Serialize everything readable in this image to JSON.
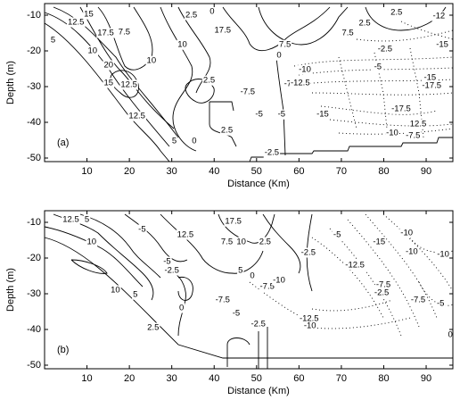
{
  "chart_data": [
    {
      "type": "contour",
      "panel_label": "(a)",
      "xlabel": "Distance (Km)",
      "ylabel": "Depth (m)",
      "xlim": [
        0,
        96.3
      ],
      "ylim": [
        -51,
        -6.75
      ],
      "xticks": [
        10,
        20,
        30,
        40,
        50,
        60,
        70,
        80,
        90
      ],
      "yticks": [
        -10,
        -20,
        -30,
        -40,
        -50
      ],
      "labels": [
        {
          "x": 7.4,
          "y": -12,
          "value": 12.5
        },
        {
          "x": 10.4,
          "y": -9.8,
          "value": 15
        },
        {
          "x": 14.4,
          "y": -15,
          "value": 17.5
        },
        {
          "x": 18.8,
          "y": -14.8,
          "value": 7.5
        },
        {
          "x": 32.5,
          "y": -18.3,
          "value": 10
        },
        {
          "x": 42,
          "y": -14.3,
          "value": 17.5
        },
        {
          "x": 34.6,
          "y": -10,
          "value": 2.5
        },
        {
          "x": 39.5,
          "y": -9,
          "value": 0
        },
        {
          "x": 71.5,
          "y": -15,
          "value": 7.5
        },
        {
          "x": 75.5,
          "y": -12.3,
          "value": 2.5
        },
        {
          "x": 83,
          "y": -9.3,
          "value": 2.5
        },
        {
          "x": 93,
          "y": -10.3,
          "value": -12
        },
        {
          "x": 93.8,
          "y": -18.3,
          "value": -15
        },
        {
          "x": 80.3,
          "y": -19.5,
          "value": -2.5
        },
        {
          "x": 78.6,
          "y": -24.5,
          "value": -5
        },
        {
          "x": 90.9,
          "y": -27.5,
          "value": -15
        },
        {
          "x": 91.3,
          "y": -29.8,
          "value": -17.5
        },
        {
          "x": 58.2,
          "y": -29.3,
          "value": -7.5
        },
        {
          "x": 60.3,
          "y": -29,
          "value": -12.5
        },
        {
          "x": 61.4,
          "y": -25.3,
          "value": -10
        },
        {
          "x": 55.3,
          "y": -21.3,
          "value": 0
        },
        {
          "x": 56.7,
          "y": -18.3,
          "value": 7.5
        },
        {
          "x": 47.9,
          "y": -31.5,
          "value": -7.5
        },
        {
          "x": 50.6,
          "y": -37.8,
          "value": -5
        },
        {
          "x": 55.9,
          "y": -37.8,
          "value": -5
        },
        {
          "x": 65.6,
          "y": -37.8,
          "value": -15
        },
        {
          "x": 84.1,
          "y": -36.3,
          "value": -17.5
        },
        {
          "x": 88.1,
          "y": -40.5,
          "value": 12.5
        },
        {
          "x": 82,
          "y": -43,
          "value": -10
        },
        {
          "x": 86.9,
          "y": -43.8,
          "value": -7.5
        },
        {
          "x": 53.6,
          "y": -48.5,
          "value": -2.5
        },
        {
          "x": 43,
          "y": -42.3,
          "value": 2.5
        },
        {
          "x": 35.3,
          "y": -45.3,
          "value": 0
        },
        {
          "x": 30.6,
          "y": -45.3,
          "value": 5
        },
        {
          "x": 21.8,
          "y": -38.3,
          "value": 12.5
        },
        {
          "x": 19.9,
          "y": -29.5,
          "value": 12.5
        },
        {
          "x": 15.1,
          "y": -24,
          "value": 20
        },
        {
          "x": 25.2,
          "y": -22.8,
          "value": 10
        },
        {
          "x": 15.1,
          "y": -29,
          "value": 15
        },
        {
          "x": 11.3,
          "y": -20,
          "value": 10
        },
        {
          "x": 2,
          "y": -17,
          "value": 5
        },
        {
          "x": 38.8,
          "y": -28.3,
          "value": 2.5
        }
      ]
    },
    {
      "type": "contour",
      "panel_label": "(b)",
      "xlabel": "Distance (Km)",
      "ylabel": "Depth (m)",
      "xlim": [
        0,
        96.3
      ],
      "ylim": [
        -51,
        -6.75
      ],
      "xticks": [
        10,
        20,
        30,
        40,
        50,
        60,
        70,
        80,
        90
      ],
      "yticks": [
        -10,
        -20,
        -30,
        -40,
        -50
      ],
      "labels": [
        {
          "x": 6.2,
          "y": -9.3,
          "value": 12.5
        },
        {
          "x": 11.1,
          "y": -15.5,
          "value": 10
        },
        {
          "x": 10,
          "y": -9.3,
          "value": 5
        },
        {
          "x": 23,
          "y": -12,
          "value": -5
        },
        {
          "x": 33.2,
          "y": -13.5,
          "value": 12.5
        },
        {
          "x": 44.5,
          "y": -9.8,
          "value": 17.5
        },
        {
          "x": 43,
          "y": -15.5,
          "value": 7.5
        },
        {
          "x": 46.4,
          "y": -15.5,
          "value": 10
        },
        {
          "x": 52,
          "y": -15.5,
          "value": 2.5
        },
        {
          "x": 28.9,
          "y": -21,
          "value": -5
        },
        {
          "x": 30,
          "y": -23.5,
          "value": -2.5
        },
        {
          "x": 46.2,
          "y": -23.5,
          "value": 5
        },
        {
          "x": 49,
          "y": -25,
          "value": 0
        },
        {
          "x": 52.5,
          "y": -28,
          "value": -7.5
        },
        {
          "x": 55.3,
          "y": -26.3,
          "value": -10
        },
        {
          "x": 62.2,
          "y": -18.5,
          "value": -2.5
        },
        {
          "x": 69,
          "y": -13.5,
          "value": -5
        },
        {
          "x": 78.9,
          "y": -15.5,
          "value": -15
        },
        {
          "x": 85.4,
          "y": -13,
          "value": -10
        },
        {
          "x": 86.6,
          "y": -18.3,
          "value": -10
        },
        {
          "x": 94,
          "y": -19,
          "value": -10
        },
        {
          "x": 73.2,
          "y": -22,
          "value": -12.5
        },
        {
          "x": 79.9,
          "y": -27.5,
          "value": -7.5
        },
        {
          "x": 79.5,
          "y": -29.8,
          "value": -2.5
        },
        {
          "x": 88.1,
          "y": -31.8,
          "value": -7.5
        },
        {
          "x": 93.4,
          "y": -32.8,
          "value": -5
        },
        {
          "x": 16.7,
          "y": -29,
          "value": 10
        },
        {
          "x": 21.4,
          "y": -30.3,
          "value": 5
        },
        {
          "x": 42,
          "y": -31.8,
          "value": -7.5
        },
        {
          "x": 45.2,
          "y": -35.5,
          "value": -5
        },
        {
          "x": 50.4,
          "y": -38.5,
          "value": -2.5
        },
        {
          "x": 62.4,
          "y": -37,
          "value": -12.5
        },
        {
          "x": 62.6,
          "y": -39,
          "value": -10
        },
        {
          "x": 32.3,
          "y": -34,
          "value": 0
        },
        {
          "x": 25.6,
          "y": -39.5,
          "value": 2.5
        },
        {
          "x": 95.7,
          "y": -41.5,
          "value": 0
        }
      ]
    }
  ]
}
